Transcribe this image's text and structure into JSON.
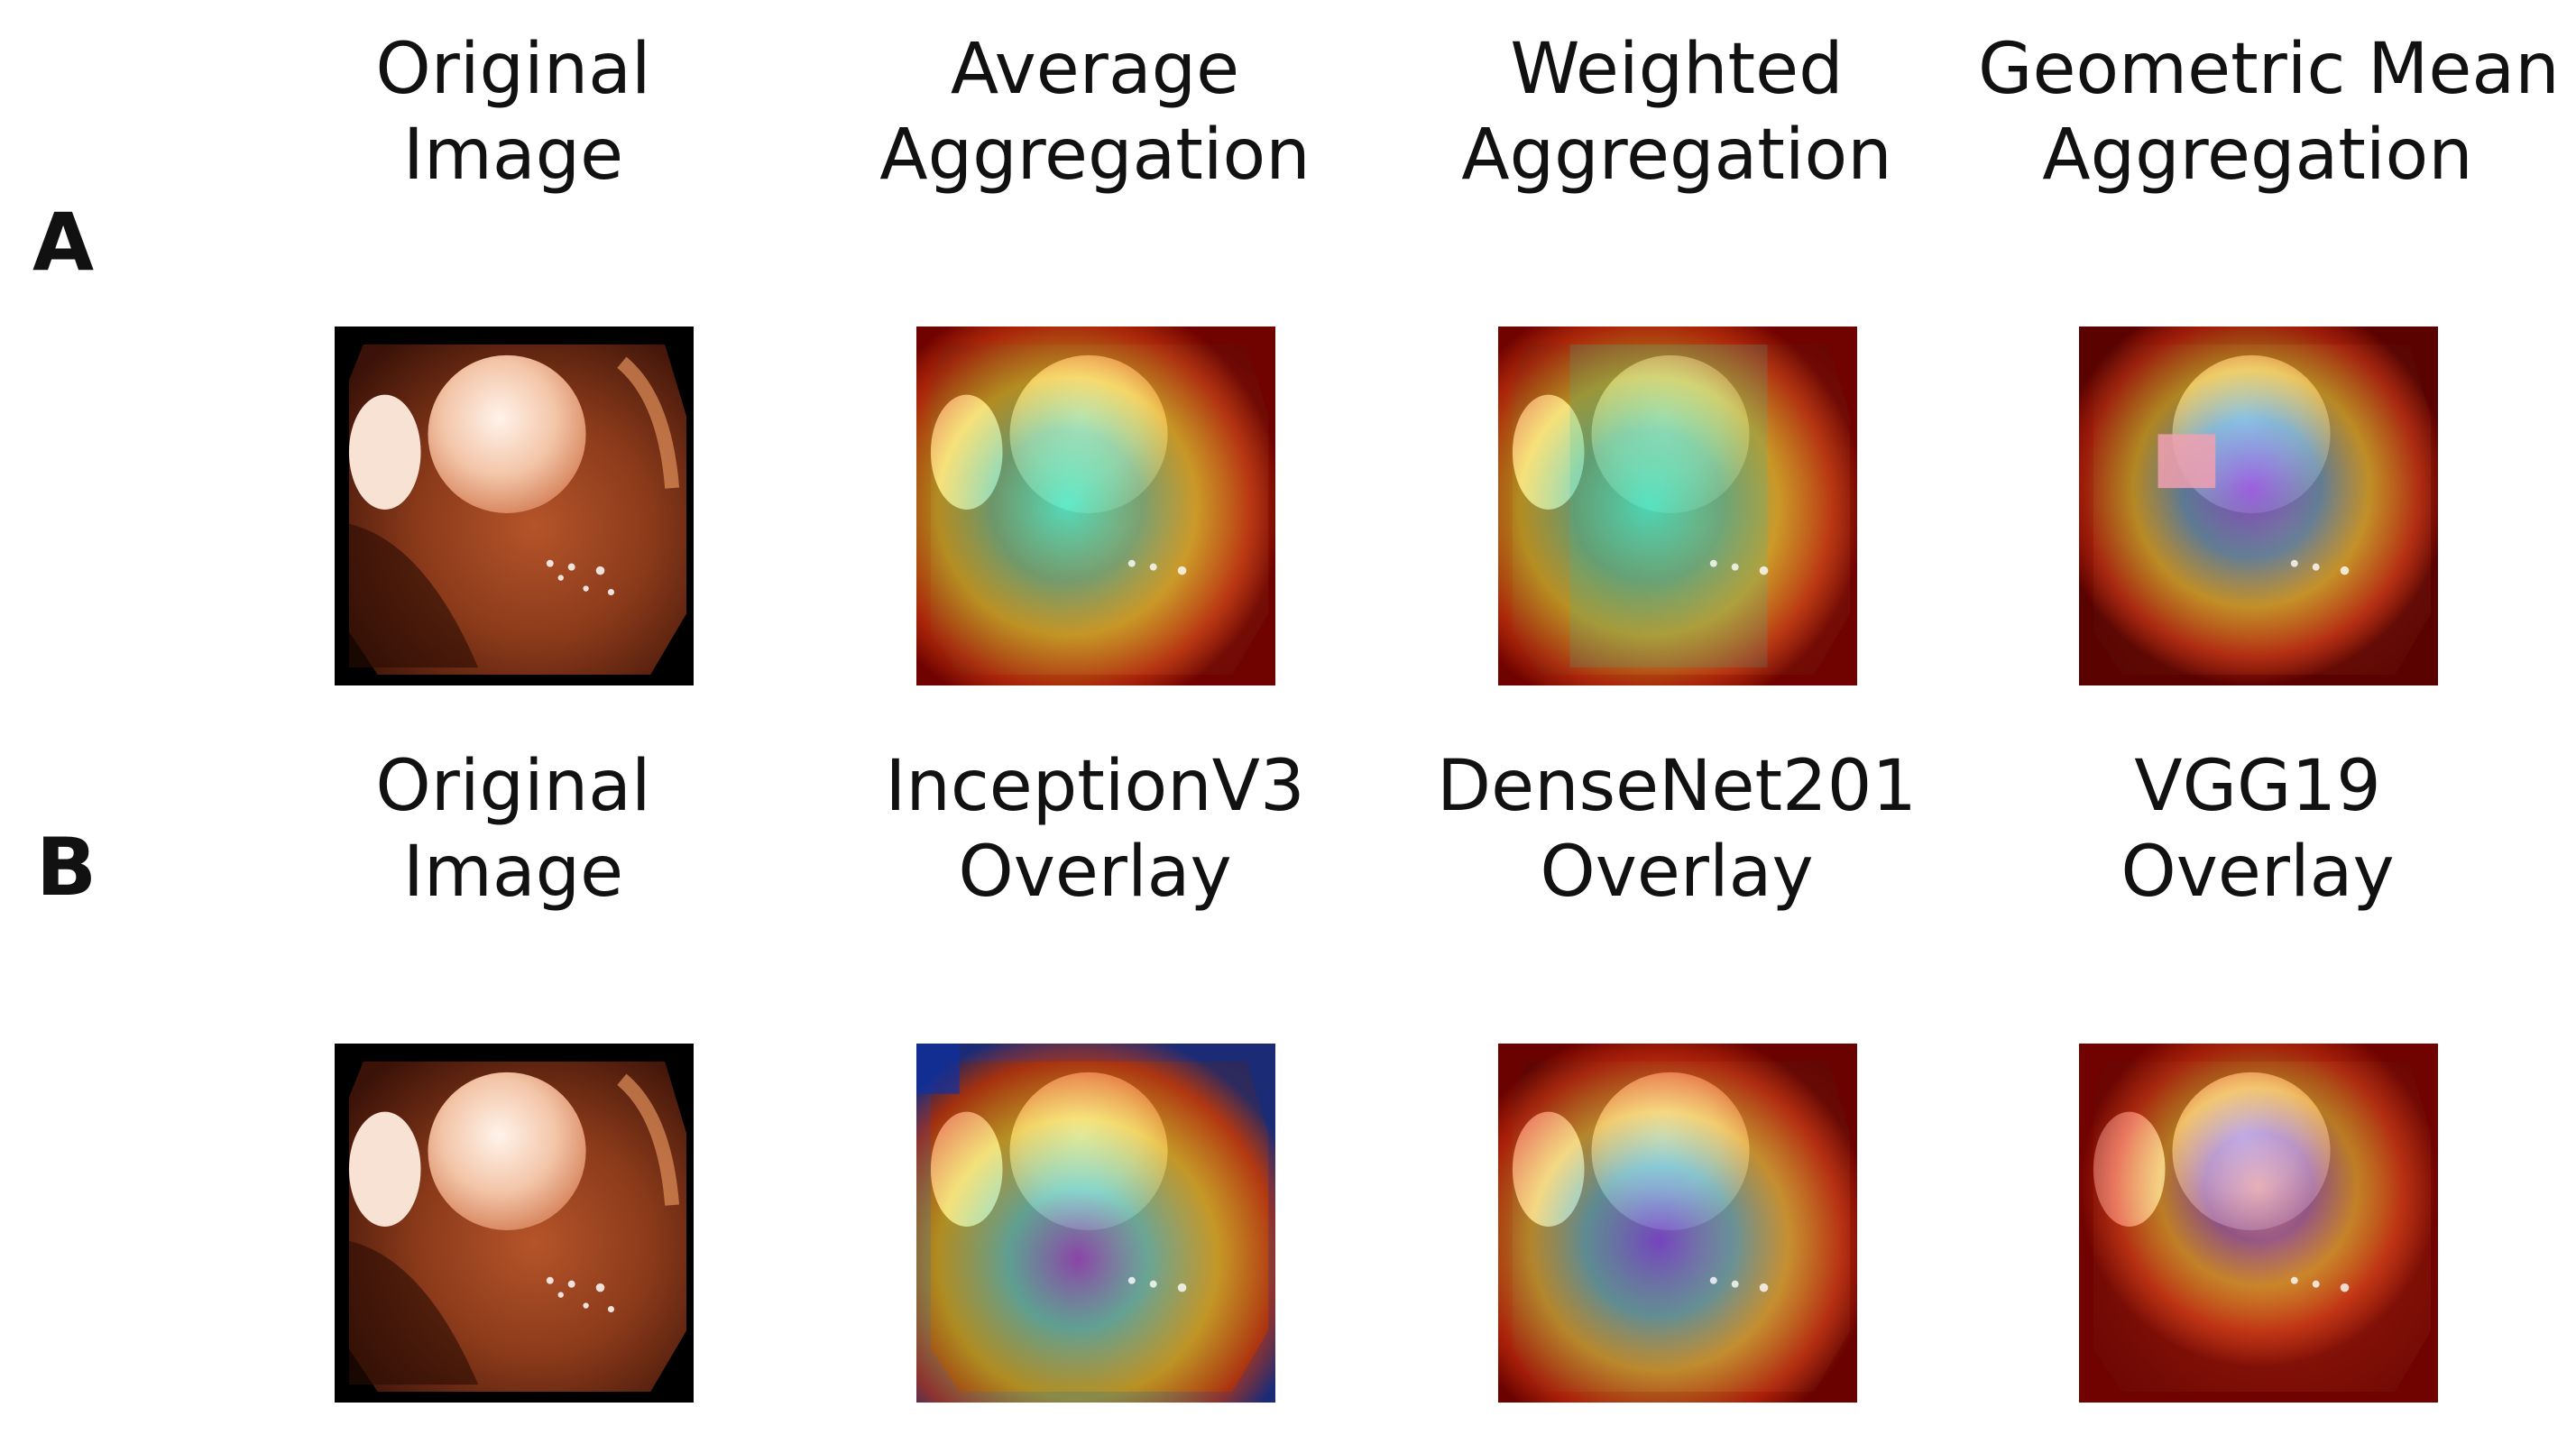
{
  "panels": [
    {
      "label": "A",
      "columns": [
        {
          "line1": "Original",
          "line2": "Image",
          "image": "original endoscopy image"
        },
        {
          "line1": "Average",
          "line2": "Aggregation",
          "image": "average aggregation heatmap overlay"
        },
        {
          "line1": "Weighted",
          "line2": "Aggregation",
          "image": "weighted aggregation heatmap overlay"
        },
        {
          "line1": "Geometric Mean",
          "line2": "Aggregation",
          "image": "geometric mean aggregation heatmap overlay"
        }
      ]
    },
    {
      "label": "B",
      "columns": [
        {
          "line1": "Original",
          "line2": "Image",
          "image": "original endoscopy image"
        },
        {
          "line1": "InceptionV3",
          "line2": "Overlay",
          "image": "InceptionV3 heatmap overlay"
        },
        {
          "line1": "DenseNet201",
          "line2": "Overlay",
          "image": "DenseNet201 heatmap overlay"
        },
        {
          "line1": "VGG19",
          "line2": "Overlay",
          "image": "VGG19 heatmap overlay"
        }
      ]
    }
  ]
}
